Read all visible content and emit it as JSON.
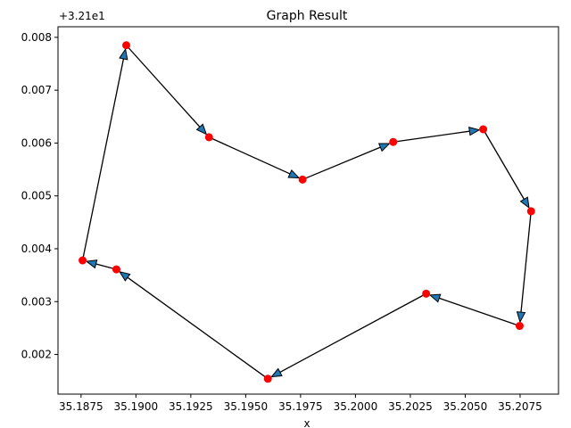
{
  "chart_data": {
    "type": "line",
    "title": "Graph Result",
    "xlabel": "x",
    "ylabel": "",
    "y_offset_label": "+3.21e1",
    "xlim": [
      35.18645,
      35.20925
    ],
    "ylim": [
      0.00125,
      0.0082
    ],
    "x_ticks": [
      35.1875,
      35.19,
      35.1925,
      35.195,
      35.1975,
      35.2,
      35.2025,
      35.205,
      35.2075
    ],
    "x_tick_labels": [
      "35.1875",
      "35.1900",
      "35.1925",
      "35.1950",
      "35.1975",
      "35.2000",
      "35.2025",
      "35.2050",
      "35.2075"
    ],
    "y_ticks": [
      0.002,
      0.003,
      0.004,
      0.005,
      0.006,
      0.007,
      0.008
    ],
    "y_tick_labels": [
      "0.002",
      "0.003",
      "0.004",
      "0.005",
      "0.006",
      "0.007",
      "0.008"
    ],
    "grid": false,
    "legend": "none",
    "nodes": [
      {
        "x": 35.18956,
        "y": 0.00785
      },
      {
        "x": 35.19333,
        "y": 0.00611
      },
      {
        "x": 35.19759,
        "y": 0.00531
      },
      {
        "x": 35.20172,
        "y": 0.00602
      },
      {
        "x": 35.20582,
        "y": 0.00626
      },
      {
        "x": 35.208,
        "y": 0.00471
      },
      {
        "x": 35.20748,
        "y": 0.00254
      },
      {
        "x": 35.20322,
        "y": 0.00315
      },
      {
        "x": 35.19601,
        "y": 0.00154
      },
      {
        "x": 35.18911,
        "y": 0.00361
      },
      {
        "x": 35.18757,
        "y": 0.00378
      }
    ],
    "edges": [
      [
        0,
        1
      ],
      [
        1,
        2
      ],
      [
        2,
        3
      ],
      [
        3,
        4
      ],
      [
        4,
        5
      ],
      [
        5,
        6
      ],
      [
        6,
        7
      ],
      [
        7,
        8
      ],
      [
        8,
        9
      ],
      [
        9,
        10
      ],
      [
        10,
        0
      ]
    ],
    "colors": {
      "node": "#ff0000",
      "edge": "#000000",
      "arrowhead": "#1f77b4"
    }
  }
}
